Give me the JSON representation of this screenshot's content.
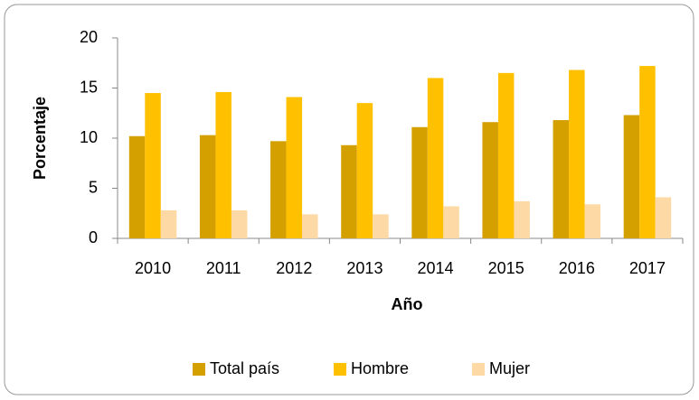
{
  "chart_data": {
    "type": "bar",
    "x_label": "Año",
    "y_label": "Porcentaje",
    "categories": [
      "2010",
      "2011",
      "2012",
      "2013",
      "2014",
      "2015",
      "2016",
      "2017"
    ],
    "series": [
      {
        "name": "Total país",
        "color": "#d4a000",
        "values": [
          10.2,
          10.3,
          9.7,
          9.3,
          11.1,
          11.6,
          11.8,
          12.3
        ]
      },
      {
        "name": "Hombre",
        "color": "#ffc000",
        "values": [
          14.5,
          14.6,
          14.1,
          13.5,
          16.0,
          16.5,
          16.8,
          17.2
        ]
      },
      {
        "name": "Mujer",
        "color": "#fdd9a5",
        "values": [
          2.8,
          2.8,
          2.4,
          2.4,
          3.2,
          3.7,
          3.4,
          4.1
        ]
      }
    ],
    "ylim": [
      0,
      20
    ],
    "yticks": [
      0,
      5,
      10,
      15,
      20
    ],
    "legend": "bottom"
  }
}
